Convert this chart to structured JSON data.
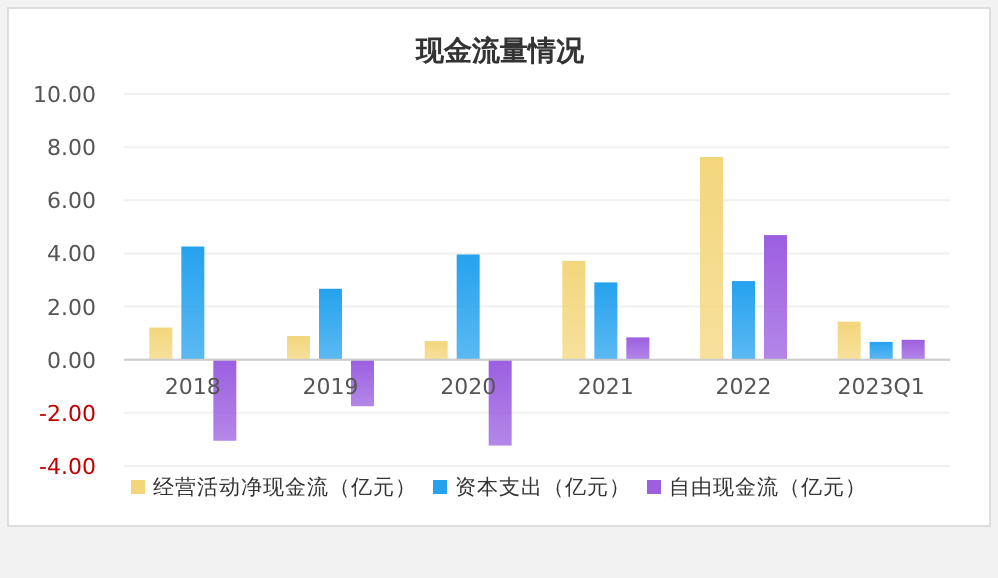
{
  "chart_data": {
    "type": "bar",
    "title": "现金流量情况",
    "categories": [
      "2018",
      "2019",
      "2020",
      "2021",
      "2022",
      "2023Q1"
    ],
    "series": [
      {
        "name": "经营活动净现金流（亿元）",
        "color": "#f3d67c",
        "values": [
          1.21,
          0.89,
          0.7,
          3.72,
          7.63,
          1.43
        ]
      },
      {
        "name": "资本支出（亿元）",
        "color": "#25a2ee",
        "values": [
          4.26,
          2.67,
          3.96,
          2.91,
          2.96,
          0.67
        ]
      },
      {
        "name": "自由现金流（亿元）",
        "color": "#9b5fe0",
        "values": [
          -3.05,
          -1.75,
          -3.23,
          0.84,
          4.69,
          0.75
        ]
      }
    ],
    "ylim": [
      -4,
      10
    ],
    "yticks": [
      {
        "value": -4,
        "label": "-4.00"
      },
      {
        "value": -2,
        "label": "-2.00"
      },
      {
        "value": 0,
        "label": "0.00"
      },
      {
        "value": 2,
        "label": "2.00"
      },
      {
        "value": 4,
        "label": "4.00"
      },
      {
        "value": 6,
        "label": "6.00"
      },
      {
        "value": 8,
        "label": "8.00"
      },
      {
        "value": 10,
        "label": "10.00"
      }
    ],
    "grid": "y",
    "legend": "bottom"
  }
}
